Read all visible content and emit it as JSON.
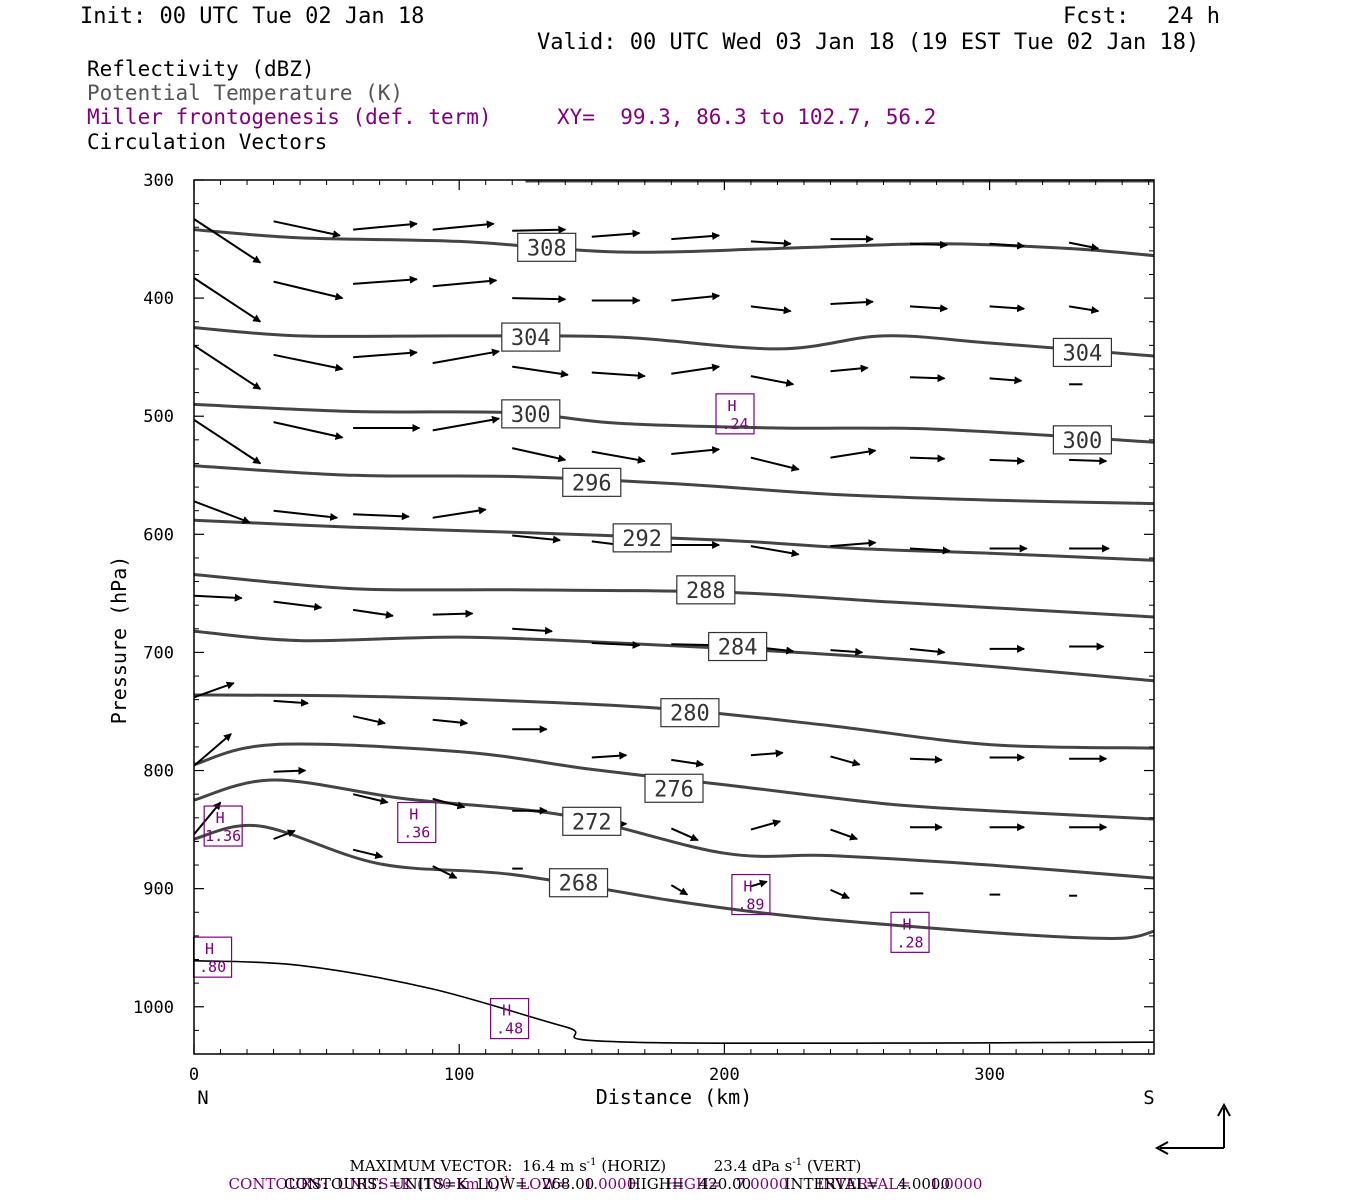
{
  "header": {
    "init": "Init: 00 UTC Tue 02 Jan 18",
    "fcst_label": "Fcst:",
    "fcst_value": "24 h",
    "valid": "Valid: 00 UTC Wed 03 Jan 18 (19 EST Tue 02 Jan 18)"
  },
  "legend": {
    "fields": [
      {
        "label": "Reflectivity (dBZ)",
        "color": "#000000"
      },
      {
        "label": "Potential Temperature (K)",
        "color": "#555555"
      },
      {
        "label": "Miller frontogenesis (def. term)",
        "color": "#800080"
      },
      {
        "label": "Circulation Vectors",
        "color": "#000000"
      }
    ],
    "xy": "XY=  99.3, 86.3 to 102.7, 56.2"
  },
  "chart_data": {
    "type": "line",
    "xlabel": "Distance (km)",
    "ylabel": "Pressure (hPa)",
    "xlim": [
      0,
      362
    ],
    "ylim": [
      1040,
      300
    ],
    "x_ticks": [
      0,
      100,
      200,
      300
    ],
    "y_ticks": [
      300,
      400,
      500,
      600,
      700,
      800,
      900,
      1000
    ],
    "left_end_label": "N",
    "right_end_label": "S",
    "theta_contours": [
      {
        "value": "308",
        "points": [
          [
            0,
            342
          ],
          [
            40,
            349
          ],
          [
            100,
            352
          ],
          [
            160,
            361
          ],
          [
            220,
            358
          ],
          [
            280,
            354
          ],
          [
            330,
            358
          ],
          [
            362,
            364
          ]
        ],
        "label_at": [
          133,
          357
        ]
      },
      {
        "value": "304",
        "points": [
          [
            0,
            425
          ],
          [
            40,
            432
          ],
          [
            100,
            432
          ],
          [
            160,
            433
          ],
          [
            220,
            443
          ],
          [
            260,
            432
          ],
          [
            300,
            438
          ],
          [
            362,
            449
          ]
        ],
        "label_at": [
          127,
          433
        ]
      },
      {
        "value": "300",
        "points": [
          [
            0,
            490
          ],
          [
            60,
            496
          ],
          [
            120,
            497
          ],
          [
            160,
            506
          ],
          [
            220,
            510
          ],
          [
            280,
            511
          ],
          [
            362,
            522
          ]
        ],
        "label_at": [
          127,
          498
        ]
      },
      {
        "value": "296",
        "points": [
          [
            0,
            542
          ],
          [
            60,
            550
          ],
          [
            120,
            551
          ],
          [
            180,
            557
          ],
          [
            240,
            566
          ],
          [
            300,
            571
          ],
          [
            362,
            574
          ]
        ],
        "label_at": [
          150,
          556
        ]
      },
      {
        "value": "292",
        "points": [
          [
            0,
            588
          ],
          [
            60,
            594
          ],
          [
            130,
            599
          ],
          [
            200,
            605
          ],
          [
            250,
            612
          ],
          [
            300,
            616
          ],
          [
            362,
            622
          ]
        ],
        "label_at": [
          169,
          603
        ]
      },
      {
        "value": "288",
        "points": [
          [
            0,
            634
          ],
          [
            60,
            646
          ],
          [
            120,
            647
          ],
          [
            200,
            649
          ],
          [
            260,
            657
          ],
          [
            300,
            662
          ],
          [
            362,
            670
          ]
        ],
        "label_at": [
          193,
          647
        ]
      },
      {
        "value": "284",
        "points": [
          [
            0,
            682
          ],
          [
            40,
            690
          ],
          [
            100,
            687
          ],
          [
            160,
            692
          ],
          [
            220,
            699
          ],
          [
            280,
            708
          ],
          [
            362,
            724
          ]
        ],
        "label_at": [
          205,
          695
        ]
      },
      {
        "value": "280",
        "points": [
          [
            0,
            736
          ],
          [
            60,
            737
          ],
          [
            120,
            741
          ],
          [
            180,
            748
          ],
          [
            240,
            762
          ],
          [
            300,
            778
          ],
          [
            362,
            781
          ]
        ],
        "label_at": [
          187,
          751
        ]
      },
      {
        "value": "276",
        "points": [
          [
            0,
            795
          ],
          [
            30,
            778
          ],
          [
            100,
            784
          ],
          [
            150,
            799
          ],
          [
            200,
            812
          ],
          [
            260,
            828
          ],
          [
            300,
            834
          ],
          [
            362,
            841
          ]
        ],
        "label_at": [
          181,
          815
        ]
      },
      {
        "value": "272",
        "points": [
          [
            0,
            825
          ],
          [
            30,
            808
          ],
          [
            80,
            824
          ],
          [
            140,
            838
          ],
          [
            200,
            870
          ],
          [
            240,
            872
          ],
          [
            300,
            880
          ],
          [
            362,
            891
          ]
        ],
        "label_at": [
          150,
          843
        ]
      },
      {
        "value": "268",
        "points": [
          [
            0,
            858
          ],
          [
            25,
            847
          ],
          [
            70,
            879
          ],
          [
            120,
            888
          ],
          [
            180,
            910
          ],
          [
            220,
            922
          ],
          [
            270,
            932
          ],
          [
            320,
            940
          ],
          [
            350,
            942
          ],
          [
            362,
            936
          ]
        ],
        "label_at": [
          145,
          895
        ]
      }
    ],
    "reflectivity_contours": [
      {
        "points": [
          [
            0,
            961
          ],
          [
            40,
            965
          ],
          [
            90,
            985
          ],
          [
            140,
            1017
          ],
          [
            165,
            1030
          ],
          [
            362,
            1030
          ]
        ]
      }
    ],
    "frontogenesis_maxima": [
      {
        "label": "H",
        "value": "1.36",
        "x": 11,
        "p": 847
      },
      {
        "label": "H",
        "value": ".36",
        "x": 84,
        "p": 844
      },
      {
        "label": "H",
        "value": ".24",
        "x": 204,
        "p": 498
      },
      {
        "label": "H",
        "value": ".89",
        "x": 210,
        "p": 905
      },
      {
        "label": "H",
        "value": ".28",
        "x": 270,
        "p": 937
      },
      {
        "label": "H",
        "value": ".80",
        "x": 7,
        "p": 958
      },
      {
        "label": "H",
        "value": ".48",
        "x": 119,
        "p": 1010
      }
    ],
    "circulation_vectors": [
      {
        "x": 0,
        "p": 333,
        "dx": 25,
        "dp": 37
      },
      {
        "x": 30,
        "p": 335,
        "dx": 25,
        "dp": 12
      },
      {
        "x": 60,
        "p": 342,
        "dx": 24,
        "dp": -5
      },
      {
        "x": 90,
        "p": 342,
        "dx": 23,
        "dp": -5
      },
      {
        "x": 120,
        "p": 343,
        "dx": 20,
        "dp": -1
      },
      {
        "x": 150,
        "p": 348,
        "dx": 18,
        "dp": -3
      },
      {
        "x": 180,
        "p": 350,
        "dx": 18,
        "dp": -3
      },
      {
        "x": 210,
        "p": 352,
        "dx": 15,
        "dp": 2
      },
      {
        "x": 240,
        "p": 350,
        "dx": 16,
        "dp": 0
      },
      {
        "x": 270,
        "p": 354,
        "dx": 14,
        "dp": 1
      },
      {
        "x": 300,
        "p": 354,
        "dx": 13,
        "dp": 2
      },
      {
        "x": 330,
        "p": 353,
        "dx": 11,
        "dp": 5
      },
      {
        "x": 0,
        "p": 383,
        "dx": 25,
        "dp": 37
      },
      {
        "x": 30,
        "p": 386,
        "dx": 26,
        "dp": 14
      },
      {
        "x": 60,
        "p": 388,
        "dx": 24,
        "dp": -4
      },
      {
        "x": 90,
        "p": 390,
        "dx": 24,
        "dp": -5
      },
      {
        "x": 120,
        "p": 400,
        "dx": 20,
        "dp": 1
      },
      {
        "x": 150,
        "p": 402,
        "dx": 18,
        "dp": 0
      },
      {
        "x": 180,
        "p": 402,
        "dx": 18,
        "dp": -4
      },
      {
        "x": 210,
        "p": 407,
        "dx": 15,
        "dp": 4
      },
      {
        "x": 240,
        "p": 405,
        "dx": 16,
        "dp": -2
      },
      {
        "x": 270,
        "p": 407,
        "dx": 14,
        "dp": 2
      },
      {
        "x": 300,
        "p": 407,
        "dx": 13,
        "dp": 2
      },
      {
        "x": 330,
        "p": 407,
        "dx": 11,
        "dp": 4
      },
      {
        "x": 0,
        "p": 440,
        "dx": 25,
        "dp": 37
      },
      {
        "x": 30,
        "p": 448,
        "dx": 26,
        "dp": 12
      },
      {
        "x": 60,
        "p": 450,
        "dx": 24,
        "dp": -4
      },
      {
        "x": 90,
        "p": 455,
        "dx": 25,
        "dp": -10
      },
      {
        "x": 120,
        "p": 458,
        "dx": 21,
        "dp": 7
      },
      {
        "x": 150,
        "p": 463,
        "dx": 20,
        "dp": 3
      },
      {
        "x": 180,
        "p": 464,
        "dx": 18,
        "dp": -6
      },
      {
        "x": 210,
        "p": 466,
        "dx": 16,
        "dp": 7
      },
      {
        "x": 240,
        "p": 462,
        "dx": 14,
        "dp": -3
      },
      {
        "x": 270,
        "p": 467,
        "dx": 13,
        "dp": 1
      },
      {
        "x": 300,
        "p": 468,
        "dx": 12,
        "dp": 2
      },
      {
        "x": 330,
        "p": 473,
        "dx": 5,
        "dp": 0
      },
      {
        "x": 0,
        "p": 503,
        "dx": 25,
        "dp": 37
      },
      {
        "x": 30,
        "p": 505,
        "dx": 26,
        "dp": 13
      },
      {
        "x": 60,
        "p": 510,
        "dx": 25,
        "dp": 0
      },
      {
        "x": 90,
        "p": 512,
        "dx": 25,
        "dp": -10
      },
      {
        "x": 120,
        "p": 527,
        "dx": 20,
        "dp": 10
      },
      {
        "x": 150,
        "p": 530,
        "dx": 20,
        "dp": 8
      },
      {
        "x": 180,
        "p": 532,
        "dx": 18,
        "dp": -4
      },
      {
        "x": 210,
        "p": 535,
        "dx": 18,
        "dp": 10
      },
      {
        "x": 240,
        "p": 535,
        "dx": 17,
        "dp": -6
      },
      {
        "x": 270,
        "p": 535,
        "dx": 13,
        "dp": 1
      },
      {
        "x": 300,
        "p": 537,
        "dx": 13,
        "dp": 1
      },
      {
        "x": 330,
        "p": 537,
        "dx": 14,
        "dp": 1
      },
      {
        "x": 0,
        "p": 572,
        "dx": 21,
        "dp": 18
      },
      {
        "x": 30,
        "p": 580,
        "dx": 24,
        "dp": 6
      },
      {
        "x": 60,
        "p": 583,
        "dx": 21,
        "dp": 2
      },
      {
        "x": 90,
        "p": 586,
        "dx": 20,
        "dp": -7
      },
      {
        "x": 120,
        "p": 601,
        "dx": 18,
        "dp": 4
      },
      {
        "x": 150,
        "p": 606,
        "dx": 18,
        "dp": 5
      },
      {
        "x": 180,
        "p": 609,
        "dx": 18,
        "dp": 0
      },
      {
        "x": 210,
        "p": 610,
        "dx": 18,
        "dp": 7
      },
      {
        "x": 240,
        "p": 610,
        "dx": 17,
        "dp": -3
      },
      {
        "x": 270,
        "p": 612,
        "dx": 15,
        "dp": 2
      },
      {
        "x": 300,
        "p": 612,
        "dx": 14,
        "dp": 0
      },
      {
        "x": 330,
        "p": 612,
        "dx": 15,
        "dp": 0
      },
      {
        "x": 0,
        "p": 652,
        "dx": 18,
        "dp": 2
      },
      {
        "x": 30,
        "p": 657,
        "dx": 18,
        "dp": 5
      },
      {
        "x": 60,
        "p": 664,
        "dx": 15,
        "dp": 5
      },
      {
        "x": 90,
        "p": 668,
        "dx": 15,
        "dp": -1
      },
      {
        "x": 120,
        "p": 680,
        "dx": 15,
        "dp": 2
      },
      {
        "x": 150,
        "p": 692,
        "dx": 18,
        "dp": 2
      },
      {
        "x": 180,
        "p": 693,
        "dx": 18,
        "dp": 1
      },
      {
        "x": 210,
        "p": 695,
        "dx": 16,
        "dp": 4
      },
      {
        "x": 240,
        "p": 698,
        "dx": 12,
        "dp": 2
      },
      {
        "x": 270,
        "p": 697,
        "dx": 13,
        "dp": 3
      },
      {
        "x": 300,
        "p": 697,
        "dx": 13,
        "dp": 0
      },
      {
        "x": 330,
        "p": 695,
        "dx": 13,
        "dp": 0
      },
      {
        "x": 0,
        "p": 738,
        "dx": 15,
        "dp": -12
      },
      {
        "x": 30,
        "p": 741,
        "dx": 13,
        "dp": 2
      },
      {
        "x": 60,
        "p": 754,
        "dx": 12,
        "dp": 6
      },
      {
        "x": 90,
        "p": 757,
        "dx": 13,
        "dp": 3
      },
      {
        "x": 120,
        "p": 765,
        "dx": 13,
        "dp": 0
      },
      {
        "x": 150,
        "p": 789,
        "dx": 13,
        "dp": -2
      },
      {
        "x": 180,
        "p": 791,
        "dx": 12,
        "dp": 4
      },
      {
        "x": 210,
        "p": 787,
        "dx": 12,
        "dp": -2
      },
      {
        "x": 240,
        "p": 788,
        "dx": 11,
        "dp": 7
      },
      {
        "x": 270,
        "p": 790,
        "dx": 12,
        "dp": 1
      },
      {
        "x": 300,
        "p": 789,
        "dx": 13,
        "dp": 0
      },
      {
        "x": 330,
        "p": 790,
        "dx": 14,
        "dp": 0
      },
      {
        "x": 0,
        "p": 796,
        "dx": 14,
        "dp": -27
      },
      {
        "x": 30,
        "p": 801,
        "dx": 12,
        "dp": -1
      },
      {
        "x": 60,
        "p": 820,
        "dx": 13,
        "dp": 7
      },
      {
        "x": 90,
        "p": 824,
        "dx": 12,
        "dp": 7
      },
      {
        "x": 120,
        "p": 834,
        "dx": 13,
        "dp": 0
      },
      {
        "x": 150,
        "p": 847,
        "dx": 13,
        "dp": -2
      },
      {
        "x": 180,
        "p": 849,
        "dx": 10,
        "dp": 10
      },
      {
        "x": 210,
        "p": 850,
        "dx": 11,
        "dp": -7
      },
      {
        "x": 240,
        "p": 850,
        "dx": 10,
        "dp": 8
      },
      {
        "x": 270,
        "p": 848,
        "dx": 12,
        "dp": 0
      },
      {
        "x": 300,
        "p": 848,
        "dx": 13,
        "dp": 0
      },
      {
        "x": 330,
        "p": 848,
        "dx": 14,
        "dp": 0
      },
      {
        "x": 0,
        "p": 854,
        "dx": 10,
        "dp": -27
      },
      {
        "x": 30,
        "p": 858,
        "dx": 8,
        "dp": -7
      },
      {
        "x": 60,
        "p": 867,
        "dx": 11,
        "dp": 6
      },
      {
        "x": 90,
        "p": 881,
        "dx": 9,
        "dp": 10
      },
      {
        "x": 120,
        "p": 883,
        "dx": 4,
        "dp": 0
      },
      {
        "x": 180,
        "p": 897,
        "dx": 6,
        "dp": 8
      },
      {
        "x": 210,
        "p": 898,
        "dx": 6,
        "dp": -4
      },
      {
        "x": 240,
        "p": 901,
        "dx": 7,
        "dp": 7
      },
      {
        "x": 270,
        "p": 904,
        "dx": 5,
        "dp": 0
      },
      {
        "x": 300,
        "p": 905,
        "dx": 4,
        "dp": 0
      },
      {
        "x": 330,
        "p": 906,
        "dx": 3,
        "dp": 0
      }
    ],
    "axes_color": "#000000",
    "theta_color": "#444444",
    "frontogenesis_color": "#800080"
  },
  "footer": {
    "max_vector_label": "MAXIMUM VECTOR:",
    "max_vector_horiz": "16.4 m s",
    "horiz_tag": "(HORIZ)",
    "max_vector_vert": "23.4 dPa s",
    "vert_tag": "(VERT)",
    "exponent": "-1",
    "contours_fg": "CONTOURS:  UNITS=K (100 km h)",
    "contours_fg_tail": "  LOW=   1.0000      HIGH=   7.0000      INTERVAL=    1.0000",
    "contours_theta": "CONTOURS:  UNITS=K  LOW=   268.00       HIGH=   420.00       INTERVAL=    4.0000"
  }
}
